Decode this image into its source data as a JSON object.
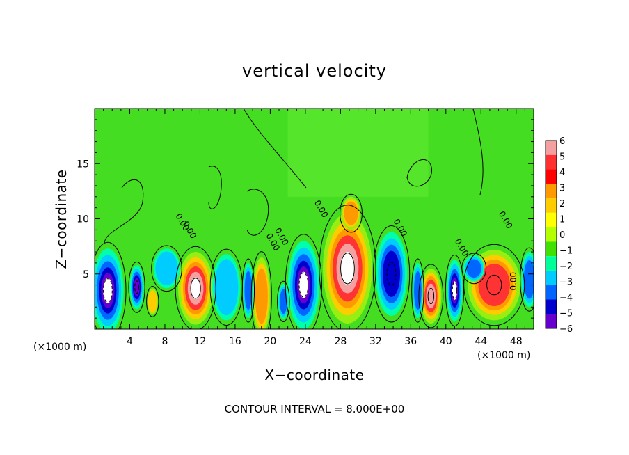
{
  "chart_data": {
    "type": "heatmap",
    "title": "vertical velocity",
    "xlabel": "X−coordinate",
    "ylabel": "Z−coordinate",
    "x_unit_left": "(×1000 m)",
    "x_unit_right": "(×1000 m)",
    "footer": "CONTOUR INTERVAL = 8.000E+00",
    "xlim": [
      0,
      50
    ],
    "ylim": [
      0,
      20
    ],
    "x_ticks": [
      "4",
      "8",
      "12",
      "16",
      "20",
      "24",
      "28",
      "32",
      "36",
      "40",
      "44",
      "48"
    ],
    "x_tick_values": [
      4,
      8,
      12,
      16,
      20,
      24,
      28,
      32,
      36,
      40,
      44,
      48
    ],
    "y_ticks": [
      "5",
      "10",
      "15"
    ],
    "y_tick_values": [
      5,
      10,
      15
    ],
    "colorbar": {
      "labels": [
        "6",
        "5",
        "4",
        "3",
        "2",
        "1",
        "0",
        "−1",
        "−2",
        "−3",
        "−4",
        "−5",
        "−6"
      ],
      "values": [
        6,
        5,
        4,
        3,
        2,
        1,
        0,
        -1,
        -2,
        -3,
        -4,
        -5,
        -6
      ],
      "colors": [
        "#f4a0a0",
        "#ff3030",
        "#ff0000",
        "#ff9900",
        "#ffcc00",
        "#ffff00",
        "#b4ff00",
        "#40e000",
        "#00ff99",
        "#00ccff",
        "#0066ff",
        "#0000cc",
        "#6600cc"
      ]
    },
    "contour_labels": [
      "0.00",
      "0.00",
      "0.00",
      "0.00",
      "0.00",
      "0.00",
      "0.00",
      "0.00",
      "0.00"
    ],
    "features": [
      {
        "kind": "updraft",
        "x": 11.5,
        "z": 3.7,
        "rx": 2.0,
        "rz": 3.3,
        "peak": 9
      },
      {
        "kind": "updraft",
        "x": 28.8,
        "z": 5.5,
        "rx": 2.8,
        "rz": 5.0,
        "peak": 10
      },
      {
        "kind": "updraft",
        "x": 19.0,
        "z": 3.0,
        "rx": 1.0,
        "rz": 3.5,
        "peak": 4
      },
      {
        "kind": "updraft",
        "x": 38.3,
        "z": 3.0,
        "rx": 1.2,
        "rz": 2.5,
        "peak": 8
      },
      {
        "kind": "updraft",
        "x": 45.5,
        "z": 4.0,
        "rx": 3.0,
        "rz": 3.2,
        "peak": 6
      },
      {
        "kind": "updraft",
        "x": 29.2,
        "z": 10.5,
        "rx": 1.1,
        "rz": 1.5,
        "peak": 4
      },
      {
        "kind": "updraft",
        "x": 6.6,
        "z": 2.5,
        "rx": 0.6,
        "rz": 1.2,
        "peak": 2
      },
      {
        "kind": "downdraft",
        "x": 1.5,
        "z": 3.5,
        "rx": 1.8,
        "rz": 3.8,
        "peak": -9
      },
      {
        "kind": "downdraft",
        "x": 4.8,
        "z": 3.8,
        "rx": 0.8,
        "rz": 2.0,
        "peak": -7
      },
      {
        "kind": "downdraft",
        "x": 8.2,
        "z": 5.5,
        "rx": 1.5,
        "rz": 1.8,
        "peak": -3
      },
      {
        "kind": "downdraft",
        "x": 15.0,
        "z": 3.8,
        "rx": 1.6,
        "rz": 3.0,
        "peak": -3
      },
      {
        "kind": "downdraft",
        "x": 17.5,
        "z": 3.5,
        "rx": 0.6,
        "rz": 2.5,
        "peak": -5
      },
      {
        "kind": "downdraft",
        "x": 23.8,
        "z": 4.0,
        "rx": 1.8,
        "rz": 4.0,
        "peak": -9
      },
      {
        "kind": "downdraft",
        "x": 21.5,
        "z": 2.5,
        "rx": 0.6,
        "rz": 1.6,
        "peak": -5
      },
      {
        "kind": "downdraft",
        "x": 33.8,
        "z": 5.0,
        "rx": 1.8,
        "rz": 3.8,
        "peak": -6
      },
      {
        "kind": "downdraft",
        "x": 36.8,
        "z": 3.5,
        "rx": 0.6,
        "rz": 2.5,
        "peak": -4
      },
      {
        "kind": "downdraft",
        "x": 41.0,
        "z": 3.5,
        "rx": 0.9,
        "rz": 2.8,
        "peak": -9
      },
      {
        "kind": "downdraft",
        "x": 49.5,
        "z": 4.5,
        "rx": 0.9,
        "rz": 2.5,
        "peak": -5
      },
      {
        "kind": "downdraft",
        "x": 43.2,
        "z": 5.5,
        "rx": 1.2,
        "rz": 1.2,
        "peak": -4
      }
    ]
  }
}
